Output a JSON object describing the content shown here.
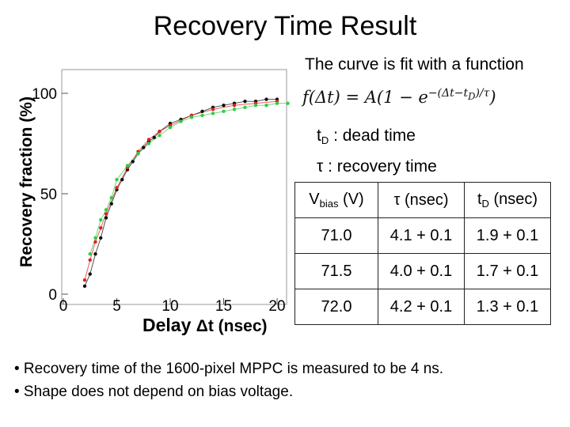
{
  "title": "Recovery Time Result",
  "fit_description": "The curve is fit with a function",
  "formula": {
    "lhs": "f(Δt) = A(1 − e",
    "exponent": "−(Δt−t",
    "exponent_sub": "D",
    "exponent_end": ")/τ",
    "tail": ")"
  },
  "definitions": [
    {
      "symbol": "t",
      "symbol_sub": "D",
      "text": " : dead time"
    },
    {
      "symbol": "τ",
      "symbol_sub": "",
      "text": " : recovery time"
    }
  ],
  "table": {
    "headers": [
      {
        "main": "V",
        "sub": "bias",
        "tail": " (V)"
      },
      {
        "main": "τ (nsec)",
        "sub": "",
        "tail": ""
      },
      {
        "main": "t",
        "sub": "D",
        "tail": " (nsec)"
      }
    ],
    "rows": [
      [
        "71.0",
        "4.1 + 0.1",
        "1.9 + 0.1"
      ],
      [
        "71.5",
        "4.0 + 0.1",
        "1.7 + 0.1"
      ],
      [
        "72.0",
        "4.2 + 0.1",
        "1.3 + 0.1"
      ]
    ]
  },
  "bullets": [
    "• Recovery time of the 1600-pixel MPPC is measured to be 4 ns.",
    "• Shape does not depend on bias voltage."
  ],
  "colors": {
    "black": "#111111",
    "red": "#e02020",
    "green": "#33cc44"
  },
  "chart_data": {
    "type": "scatter",
    "ylabel": "Recovery fraction (%)",
    "xlabel_word": "Delay",
    "xlabel_unit": "Δt (nsec)",
    "xlim": [
      0,
      21
    ],
    "ylim": [
      0,
      105
    ],
    "xticks": [
      0,
      5,
      10,
      15,
      20
    ],
    "yticks": [
      0,
      50,
      100
    ],
    "grid": false,
    "series": [
      {
        "color": "#111111",
        "x": [
          2,
          2.5,
          3,
          3.5,
          4,
          4.5,
          5,
          5.5,
          6,
          6.5,
          7,
          7.5,
          8,
          8.5,
          9,
          10,
          11,
          12,
          13,
          14,
          15,
          16,
          17,
          18,
          19,
          20
        ],
        "y": [
          4,
          10,
          20,
          28,
          38,
          45,
          52,
          57,
          62,
          66,
          70,
          73,
          76,
          78,
          81,
          85,
          87,
          89,
          91,
          93,
          94,
          95,
          96,
          96,
          97,
          97
        ]
      },
      {
        "color": "#e02020",
        "x": [
          2,
          2.5,
          3,
          3.5,
          4,
          5,
          6,
          7,
          8,
          9,
          10,
          12,
          14,
          16,
          18,
          20
        ],
        "y": [
          7,
          17,
          26,
          33,
          40,
          53,
          63,
          71,
          77,
          81,
          84,
          89,
          92,
          94,
          95,
          96
        ]
      },
      {
        "color": "#33cc44",
        "x": [
          2.5,
          3,
          3.5,
          4,
          4.5,
          5,
          6,
          7,
          8,
          9,
          10,
          11,
          12,
          13,
          14,
          15,
          16,
          17,
          18,
          19,
          20,
          21
        ],
        "y": [
          20,
          28,
          37,
          42,
          48,
          57,
          64,
          70,
          75,
          79,
          83,
          86,
          88,
          89,
          90,
          91,
          92,
          93,
          94,
          94,
          95,
          95
        ]
      }
    ]
  }
}
